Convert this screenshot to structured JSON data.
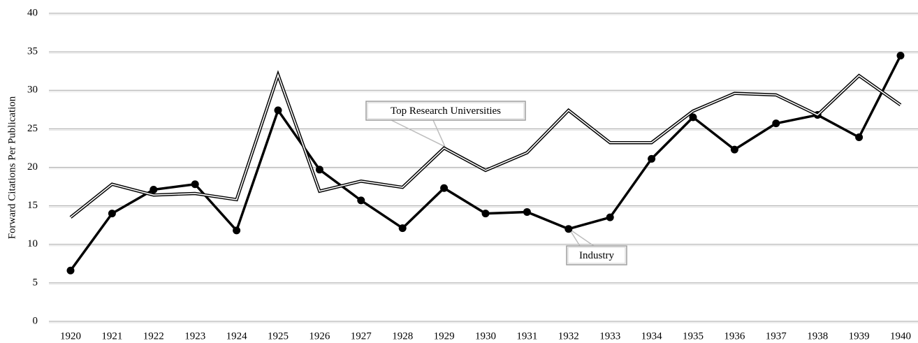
{
  "chart_data": {
    "type": "line",
    "y_label": "Forward Citations Per Publication",
    "categories": [
      "1920",
      "1921",
      "1922",
      "1923",
      "1924",
      "1925",
      "1926",
      "1927",
      "1928",
      "1929",
      "1930",
      "1931",
      "1932",
      "1933",
      "1934",
      "1935",
      "1936",
      "1937",
      "1938",
      "1939",
      "1940"
    ],
    "series": [
      {
        "name": "Industry",
        "color": "#000000",
        "marker": true,
        "values": [
          6.6,
          14.0,
          17.1,
          17.8,
          11.8,
          27.4,
          19.7,
          15.7,
          12.1,
          17.3,
          14.0,
          14.2,
          12.0,
          13.5,
          21.1,
          26.5,
          22.3,
          25.7,
          26.8,
          23.9,
          34.5
        ]
      },
      {
        "name": "Top Research Universities",
        "color": "#ffffff",
        "marker": false,
        "values": [
          13.5,
          17.8,
          16.4,
          16.6,
          15.8,
          32.0,
          16.9,
          18.2,
          17.4,
          22.5,
          19.6,
          21.9,
          27.4,
          23.2,
          23.2,
          27.3,
          29.6,
          29.4,
          26.8,
          31.9,
          28.1
        ]
      }
    ],
    "ylim": [
      0,
      40
    ],
    "yticks": [
      0,
      5,
      10,
      15,
      20,
      25,
      30,
      35,
      40
    ],
    "grid": true
  }
}
